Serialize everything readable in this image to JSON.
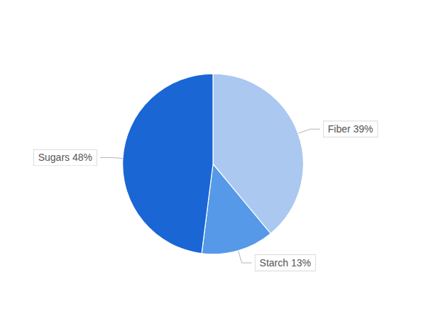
{
  "chart_data": {
    "type": "pie",
    "categories": [
      "Fiber 39%",
      "Starch 13%",
      "Sugars 48%"
    ],
    "values": [
      39,
      13,
      48
    ],
    "colors": [
      "#aac8f0",
      "#5599e8",
      "#1a66d4"
    ]
  }
}
